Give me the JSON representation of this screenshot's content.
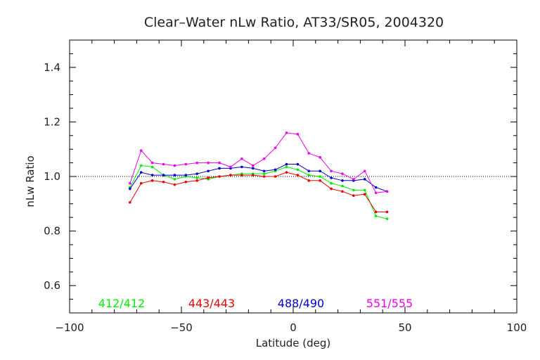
{
  "chart_data": {
    "type": "line",
    "title": "Clear–Water nLw Ratio, AT33/SR05, 2004320",
    "xlabel": "Latitude (deg)",
    "ylabel": "nLw Ratio",
    "xlim": [
      -100,
      100
    ],
    "ylim": [
      0.5,
      1.5
    ],
    "xticks": [
      -100,
      -50,
      0,
      50,
      100
    ],
    "xtick_labels": [
      "−100",
      "−50",
      "0",
      "50",
      "100"
    ],
    "yticks": [
      0.6,
      0.8,
      1.0,
      1.2,
      1.4
    ],
    "ytick_labels": [
      "0.6",
      "0.8",
      "1.0",
      "1.2",
      "1.4"
    ],
    "reference_line": 1.0,
    "grid": false,
    "legend_placement": "bottom-inside",
    "x": [
      -73,
      -68,
      -63,
      -58,
      -53,
      -48,
      -43,
      -38,
      -33,
      -28,
      -23,
      -18,
      -13,
      -8,
      -3,
      2,
      7,
      12,
      17,
      22,
      27,
      32,
      37,
      42
    ],
    "series": [
      {
        "name": "412/412",
        "color": "#00ee00",
        "values": [
          0.96,
          1.04,
          1.035,
          1.005,
          0.99,
          1.0,
          0.995,
          0.99,
          1.0,
          1.005,
          1.01,
          1.01,
          1.01,
          1.02,
          1.035,
          1.025,
          1.005,
          1.0,
          0.975,
          0.965,
          0.95,
          0.95,
          0.855,
          0.845
        ]
      },
      {
        "name": "443/443",
        "color": "#ee0000",
        "values": [
          0.905,
          0.975,
          0.985,
          0.98,
          0.97,
          0.98,
          0.985,
          0.995,
          1.0,
          1.005,
          1.005,
          1.005,
          1.0,
          1.0,
          1.015,
          1.005,
          0.985,
          0.985,
          0.955,
          0.945,
          0.93,
          0.935,
          0.87,
          0.87
        ]
      },
      {
        "name": "488/490",
        "color": "#0000cc",
        "values": [
          0.955,
          1.015,
          1.005,
          1.005,
          1.005,
          1.005,
          1.01,
          1.02,
          1.03,
          1.03,
          1.035,
          1.03,
          1.02,
          1.025,
          1.045,
          1.045,
          1.02,
          1.02,
          0.995,
          0.985,
          0.985,
          0.99,
          0.96,
          0.945
        ]
      },
      {
        "name": "551/555",
        "color": "#ee00ee",
        "values": [
          0.975,
          1.095,
          1.05,
          1.045,
          1.04,
          1.045,
          1.05,
          1.05,
          1.05,
          1.035,
          1.065,
          1.04,
          1.065,
          1.105,
          1.16,
          1.155,
          1.085,
          1.07,
          1.02,
          1.01,
          0.99,
          1.02,
          0.94,
          0.945
        ]
      }
    ]
  }
}
